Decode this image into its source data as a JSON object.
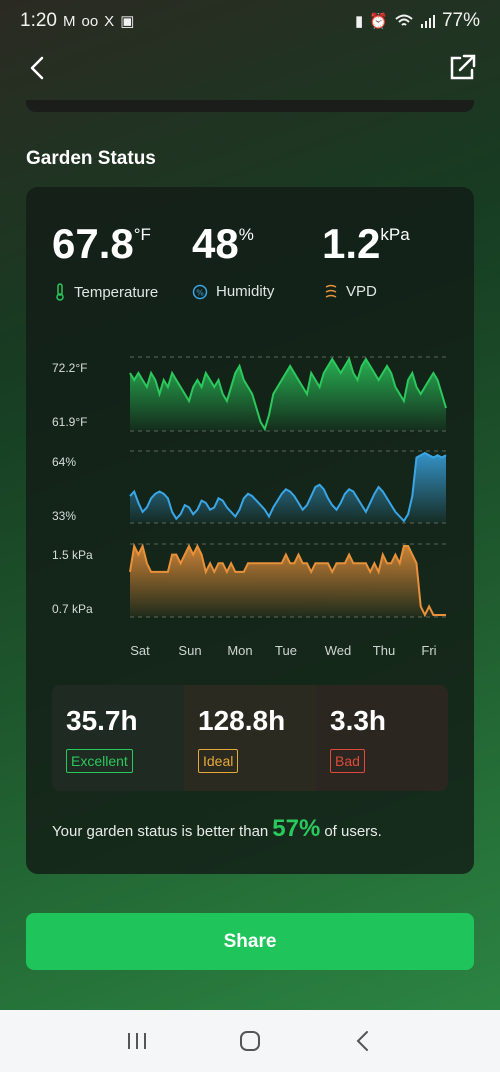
{
  "status_bar": {
    "time": "1:20",
    "left_icons": [
      "M",
      "oo",
      "X",
      "▣"
    ],
    "battery": "77%"
  },
  "section_title": "Garden Status",
  "metrics": [
    {
      "value": "67.8",
      "unit": "°F",
      "label": "Temperature",
      "icon": "thermometer-icon",
      "color": "#2bc85c"
    },
    {
      "value": "48",
      "unit": "%",
      "label": "Humidity",
      "icon": "humidity-drop-icon",
      "color": "#3aa6e6"
    },
    {
      "value": "1.2",
      "unit": "kPa",
      "label": "VPD",
      "icon": "vpd-waves-icon",
      "color": "#e8913a"
    }
  ],
  "charts": [
    {
      "name": "temperature-chart",
      "max_label": "72.2°F",
      "min_label": "61.9°F",
      "color": "#2bc85c",
      "values": [
        70,
        69,
        70,
        69,
        68,
        70,
        69,
        67,
        69,
        68,
        70,
        69,
        68,
        67,
        66,
        68,
        69,
        68,
        70,
        69,
        68,
        69,
        67,
        66,
        68,
        70,
        71,
        69,
        68,
        67,
        65,
        63,
        62,
        64,
        67,
        68,
        69,
        70,
        71,
        70,
        69,
        68,
        67,
        70,
        69,
        68,
        70,
        71,
        72,
        71,
        70,
        71,
        72,
        70,
        69,
        71,
        72,
        71,
        70,
        69,
        70,
        71,
        70,
        68,
        67,
        66,
        69,
        70,
        68,
        67,
        68,
        69,
        70,
        69,
        67,
        65
      ]
    },
    {
      "name": "humidity-chart",
      "max_label": "64%",
      "min_label": "33%",
      "color": "#3aa6e6",
      "values": [
        45,
        47,
        42,
        38,
        40,
        44,
        46,
        47,
        46,
        44,
        38,
        35,
        37,
        41,
        40,
        37,
        39,
        43,
        42,
        39,
        40,
        44,
        43,
        40,
        38,
        36,
        39,
        44,
        46,
        45,
        43,
        41,
        39,
        36,
        40,
        43,
        46,
        48,
        47,
        45,
        42,
        39,
        41,
        45,
        49,
        50,
        48,
        44,
        41,
        39,
        42,
        46,
        48,
        47,
        44,
        41,
        38,
        42,
        46,
        49,
        47,
        44,
        41,
        38,
        36,
        34,
        37,
        45,
        62,
        63,
        64,
        63,
        62,
        63,
        62,
        63
      ]
    },
    {
      "name": "vpd-chart",
      "max_label": "1.5 kPa",
      "min_label": "0.7 kPa",
      "color": "#e8913a",
      "values": [
        1.2,
        1.5,
        1.4,
        1.5,
        1.3,
        1.2,
        1.2,
        1.2,
        1.2,
        1.2,
        1.4,
        1.4,
        1.3,
        1.4,
        1.5,
        1.4,
        1.5,
        1.4,
        1.2,
        1.3,
        1.2,
        1.3,
        1.3,
        1.2,
        1.3,
        1.2,
        1.2,
        1.2,
        1.3,
        1.3,
        1.3,
        1.3,
        1.3,
        1.3,
        1.3,
        1.3,
        1.3,
        1.4,
        1.3,
        1.3,
        1.4,
        1.3,
        1.3,
        1.2,
        1.3,
        1.3,
        1.3,
        1.3,
        1.2,
        1.3,
        1.3,
        1.3,
        1.4,
        1.3,
        1.3,
        1.3,
        1.3,
        1.2,
        1.3,
        1.2,
        1.4,
        1.3,
        1.3,
        1.4,
        1.3,
        1.5,
        1.5,
        1.4,
        1.3,
        0.8,
        0.7,
        0.8,
        0.7,
        0.7,
        0.7,
        0.7
      ]
    }
  ],
  "days": [
    "Sat",
    "Sun",
    "Mon",
    "Tue",
    "Wed",
    "Thu",
    "Fri"
  ],
  "hours": [
    {
      "value": "35.7h",
      "tag": "Excellent",
      "color": "#2bc85c"
    },
    {
      "value": "128.8h",
      "tag": "Ideal",
      "color": "#e8a83a"
    },
    {
      "value": "3.3h",
      "tag": "Bad",
      "color": "#e04a3a"
    }
  ],
  "footer": {
    "prefix": "Your garden status is better than",
    "percent": "57%",
    "suffix": "of users."
  },
  "share_label": "Share"
}
